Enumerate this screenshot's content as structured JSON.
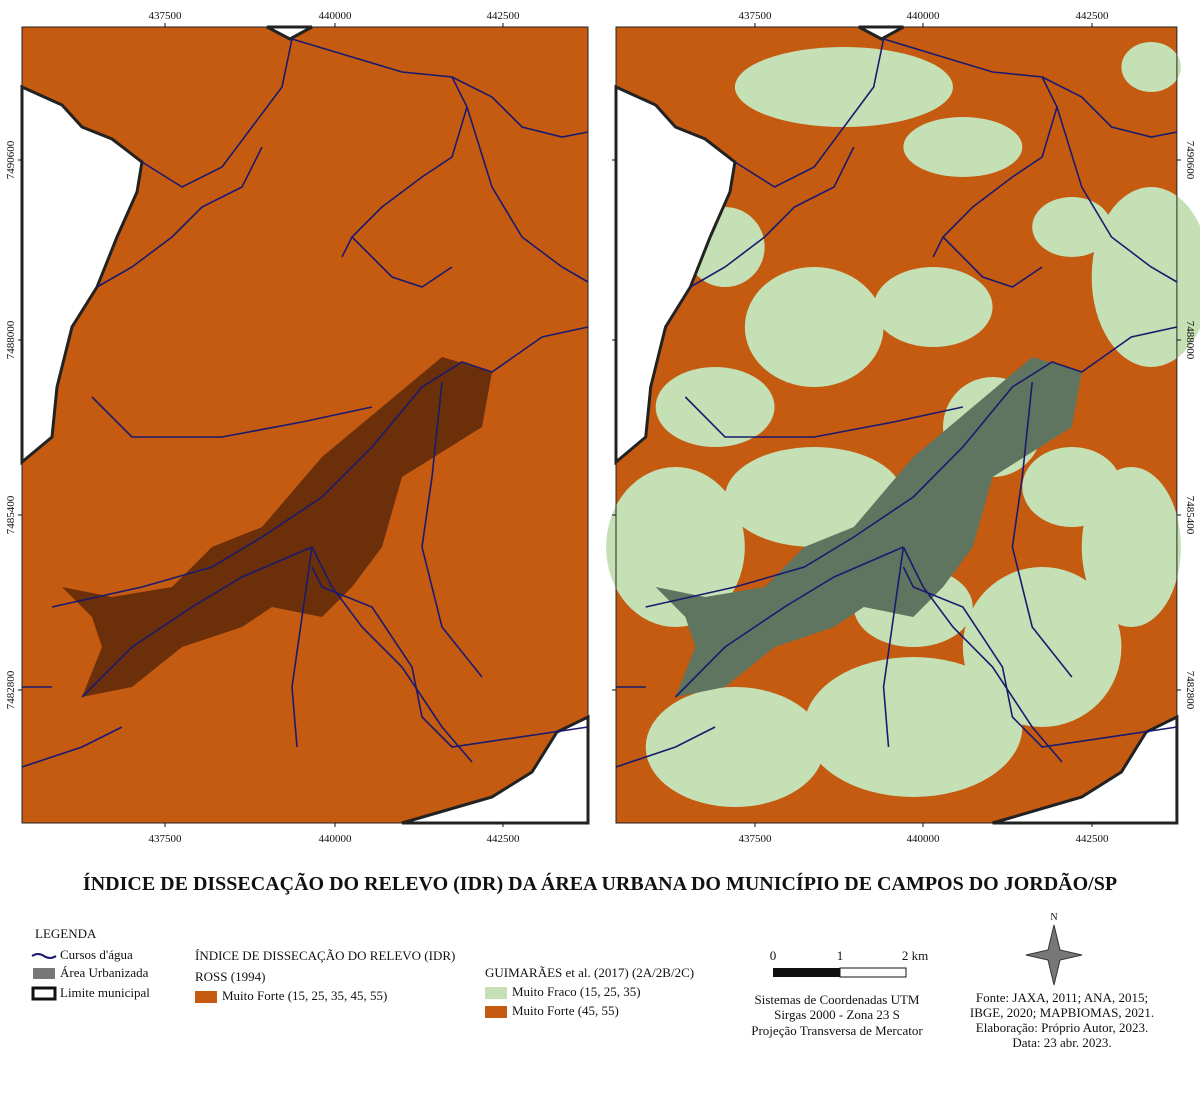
{
  "title": "ÍNDICE DE DISSECAÇÃO DO RELEVO (IDR) DA ÁREA URBANA DO MUNICÍPIO DE CAMPOS DO JORDÃO/SP",
  "maps": [
    {
      "x_ticks": [
        437500,
        440000,
        442500
      ],
      "y_ticks": [
        7490600,
        7488000,
        7485400,
        7482800
      ]
    },
    {
      "x_ticks": [
        437500,
        440000,
        442500
      ],
      "y_ticks": [
        7490600,
        7488000,
        7485400,
        7482800
      ]
    }
  ],
  "legend": {
    "heading": "LEGENDA",
    "items": [
      "Cursos d'água",
      "Área Urbanizada",
      "Limite municipal"
    ]
  },
  "idr": {
    "heading": "ÍNDICE DE DISSECAÇÃO DO RELEVO (IDR)",
    "ross": {
      "heading": "ROSS (1994)",
      "classes": [
        {
          "label": "Muito Forte (15, 25, 35, 45, 55)",
          "color": "#c55a11"
        }
      ]
    },
    "guimaraes": {
      "heading": "GUIMARÃES et al. (2017) (2A/2B/2C)",
      "classes": [
        {
          "label": "Muito Fraco (15, 25, 35)",
          "color": "#c5e0b4"
        },
        {
          "label": "Muito Forte (45, 55)",
          "color": "#c55a11"
        }
      ]
    }
  },
  "scale_bar": {
    "labels": [
      "0",
      "1",
      "2 km"
    ]
  },
  "north": "N",
  "projection": [
    "Sistemas de Coordenadas UTM",
    "Sirgas 2000 - Zona 23 S",
    "Projeção Transversa de Mercator"
  ],
  "credits": [
    "Fonte: JAXA, 2011; ANA, 2015;",
    "IBGE, 2020; MAPBIOMAS, 2021.",
    "Elaboração: Próprio Autor, 2023.",
    "Data: 23 abr. 2023."
  ]
}
